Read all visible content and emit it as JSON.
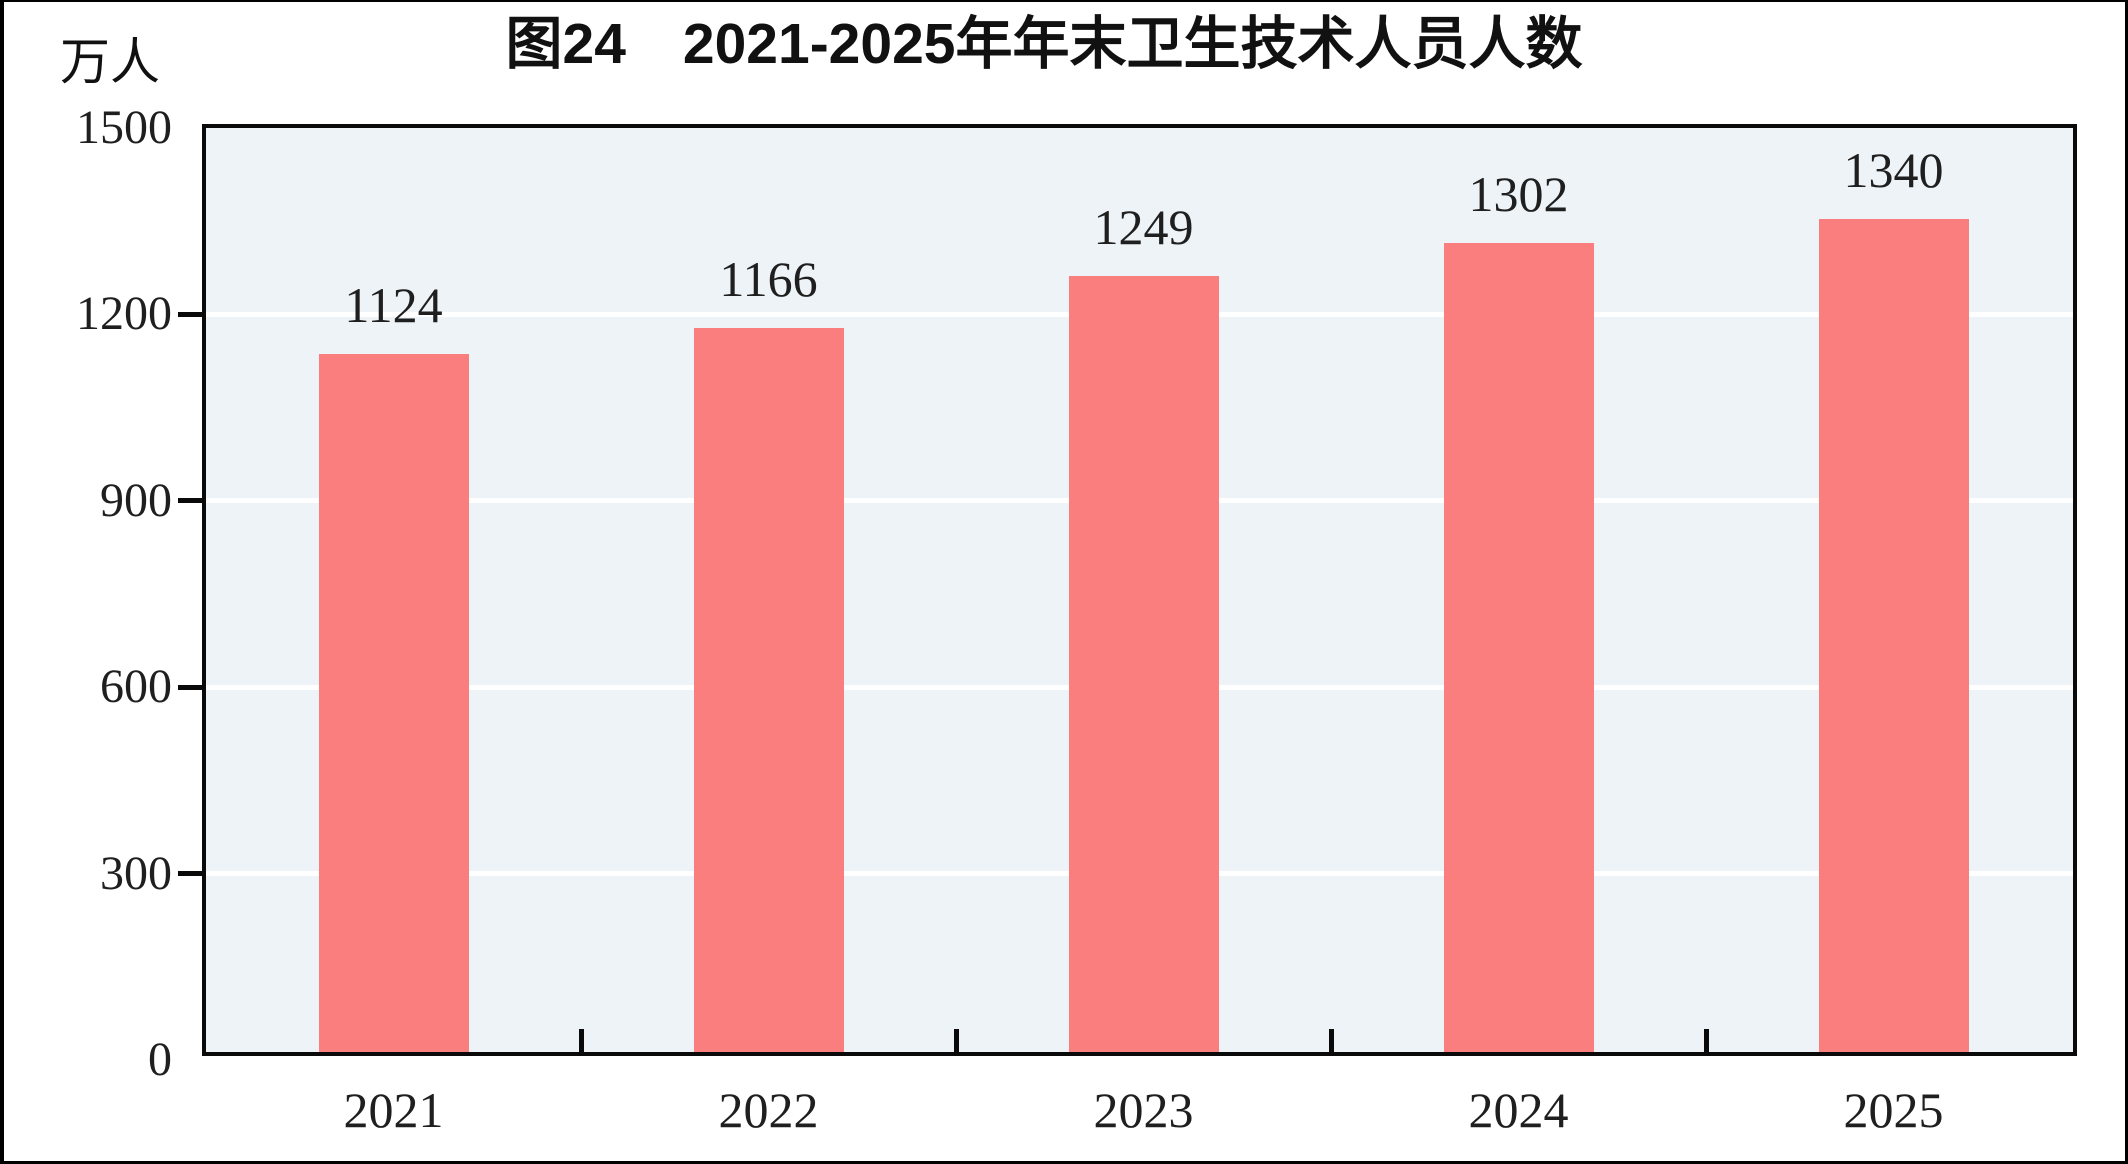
{
  "chart_data": {
    "type": "bar",
    "title": "图24　2021-2025年年末卫生技术人员人数",
    "ylabel": "万人",
    "xlabel": "",
    "categories": [
      "2021",
      "2022",
      "2023",
      "2024",
      "2025"
    ],
    "values": [
      1124,
      1166,
      1249,
      1302,
      1340
    ],
    "ylim": [
      0,
      1500
    ],
    "yticks": [
      0,
      300,
      600,
      900,
      1200,
      1500
    ],
    "grid": "horizontal-white-gridlines",
    "legend": "none",
    "bar_labels_shown": true,
    "colors": {
      "bar": "#fb7e7e",
      "plot_background": "#edf3f7",
      "gridline": "#ffffff",
      "axis": "#0a0a0a",
      "text": "#1f1f1f"
    }
  }
}
